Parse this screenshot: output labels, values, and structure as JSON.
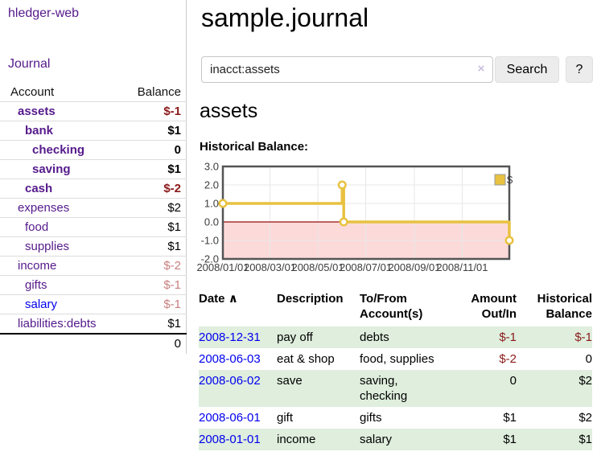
{
  "app": {
    "brand": "hledger-web"
  },
  "colors": {
    "link_purple": "#551a8b",
    "link_blue": "#0000ee",
    "negative_strong": "#8b1a1a",
    "negative_muted": "#c87f7f",
    "row_shade_green": "#dfeedd",
    "chart_line_gold": "#e8c240",
    "chart_negative_region": "#fcdada",
    "chart_zero_line": "#a83232"
  },
  "sidebar": {
    "journal_link": "Journal",
    "accounts": {
      "headers": {
        "account": "Account",
        "balance": "Balance"
      },
      "rows": [
        {
          "name": "assets",
          "balance": "$-1",
          "indent": 1,
          "bold": true,
          "neg": "strong"
        },
        {
          "name": "bank",
          "balance": "$1",
          "indent": 2,
          "bold": true
        },
        {
          "name": "checking",
          "balance": "0",
          "indent": 3,
          "bold": true
        },
        {
          "name": "saving",
          "balance": "$1",
          "indent": 3,
          "bold": true
        },
        {
          "name": "cash",
          "balance": "$-2",
          "indent": 2,
          "bold": true,
          "neg": "strong"
        },
        {
          "name": "expenses",
          "balance": "$2",
          "indent": 1
        },
        {
          "name": "food",
          "balance": "$1",
          "indent": 2
        },
        {
          "name": "supplies",
          "balance": "$1",
          "indent": 2
        },
        {
          "name": "income",
          "balance": "$-2",
          "indent": 1,
          "neg": "muted"
        },
        {
          "name": "gifts",
          "balance": "$-1",
          "indent": 2,
          "neg": "muted"
        },
        {
          "name": "salary",
          "balance": "$-1",
          "indent": 2,
          "neg": "muted",
          "link": "blue"
        },
        {
          "name": "liabilities:debts",
          "balance": "$1",
          "indent": 1
        }
      ],
      "total": "0"
    }
  },
  "header": {
    "title": "sample.journal"
  },
  "search": {
    "value": "inacct:assets",
    "clear_icon": "×",
    "button_label": "Search",
    "help_label": "?"
  },
  "account_page": {
    "title": "assets",
    "chart_label": "Historical Balance:"
  },
  "chart_data": {
    "type": "line",
    "step": true,
    "title": "Historical Balance:",
    "series": [
      {
        "name": "$",
        "color": "#e8c240",
        "points": [
          [
            "2008-01-01",
            1
          ],
          [
            "2008-06-01",
            2
          ],
          [
            "2008-06-03",
            0
          ],
          [
            "2008-12-31",
            -1
          ]
        ]
      }
    ],
    "x_ticks": [
      "2008/01/01",
      "2008/03/01",
      "2008/05/01",
      "2008/07/01",
      "2008/09/01",
      "2008/11/01"
    ],
    "y_tick_labels": [
      "3.0",
      "2.0",
      "1.0",
      "0.0",
      "-1.0",
      "-2.0"
    ],
    "y_tick_values": [
      3,
      2,
      1,
      0,
      -1,
      -2
    ],
    "xlim": [
      "2008-01-01",
      "2008-12-31"
    ],
    "ylim": [
      -2,
      3
    ],
    "grid": true,
    "legend_position": "top-right",
    "legend_label": "$"
  },
  "register": {
    "headers": {
      "date": "Date",
      "sort_indicator": "∧",
      "description": "Description",
      "accounts": "To/From Account(s)",
      "amount": "Amount Out/In",
      "balance": "Historical Balance"
    },
    "rows": [
      {
        "date": "2008-12-31",
        "description": "pay off",
        "accounts": "debts",
        "amount": "$-1",
        "amount_neg": true,
        "balance": "$-1",
        "balance_neg": true,
        "shaded": true
      },
      {
        "date": "2008-06-03",
        "description": "eat & shop",
        "accounts": "food, supplies",
        "amount": "$-2",
        "amount_neg": true,
        "balance": "0",
        "balance_neg": false,
        "shaded": false
      },
      {
        "date": "2008-06-02",
        "description": "save",
        "accounts": "saving, checking",
        "amount": "0",
        "amount_neg": false,
        "balance": "$2",
        "balance_neg": false,
        "shaded": true
      },
      {
        "date": "2008-06-01",
        "description": "gift",
        "accounts": "gifts",
        "amount": "$1",
        "amount_neg": false,
        "balance": "$2",
        "balance_neg": false,
        "shaded": false
      },
      {
        "date": "2008-01-01",
        "description": "income",
        "accounts": "salary",
        "amount": "$1",
        "amount_neg": false,
        "balance": "$1",
        "balance_neg": false,
        "shaded": true
      }
    ]
  }
}
